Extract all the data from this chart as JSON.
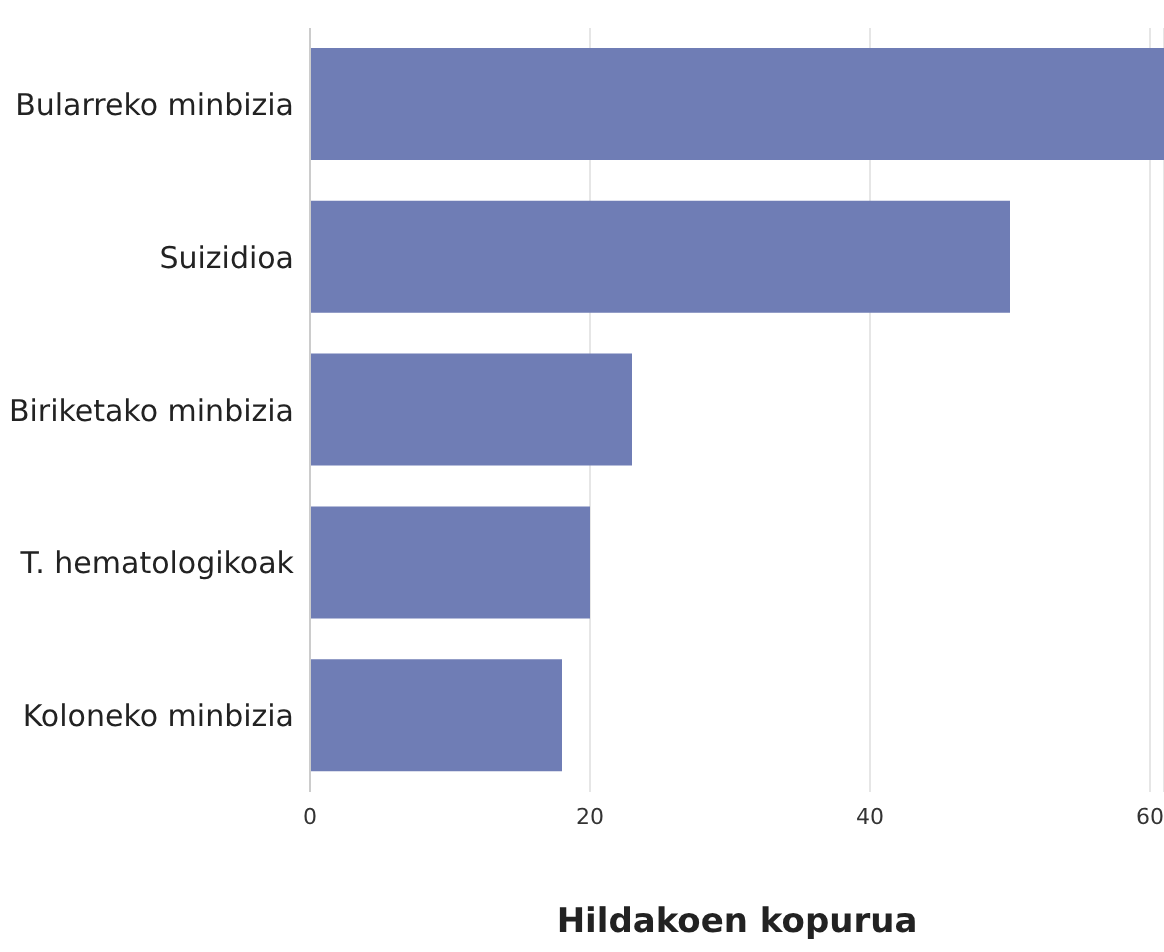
{
  "chart_data": {
    "type": "bar",
    "orientation": "horizontal",
    "xlabel": "Hildakoen kopurua",
    "categories": [
      "Bularreko minbizia",
      "Suizidioa",
      "Biriketako minbizia",
      "T. hematologikoak",
      "Koloneko minbizia"
    ],
    "values": [
      61,
      50,
      23,
      20,
      18
    ],
    "color": "#6f7db5",
    "xlim": [
      0,
      61
    ],
    "xticks": [
      0,
      20,
      40,
      60
    ],
    "grid": "x",
    "legend": false
  }
}
